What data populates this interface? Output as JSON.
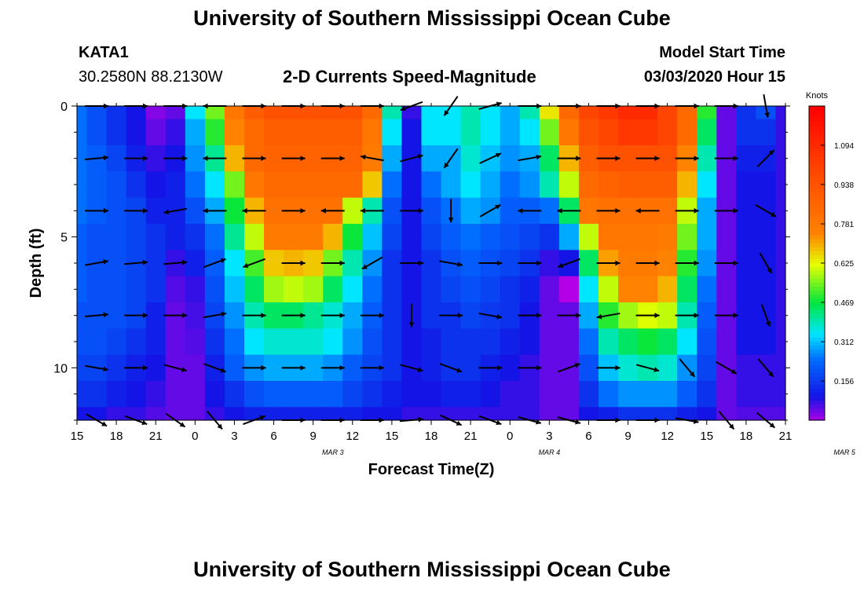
{
  "page": {
    "title_top": "University of Southern Mississippi Ocean Cube",
    "title_bottom": "University of Southern Mississippi Ocean Cube",
    "station": "KATA1",
    "location": "30.2580N 88.2130W",
    "subtitle": "2-D Currents Speed-Magnitude",
    "model_label": "Model Start Time",
    "model_time": "03/03/2020 Hour 15"
  },
  "chart_data": {
    "type": "heatmap",
    "title": "2-D Currents Speed-Magnitude",
    "xlabel": "Forecast Time(Z)",
    "ylabel": "Depth (ft)",
    "x_tick_labels": [
      "15",
      "18",
      "21",
      "0",
      "3",
      "6",
      "9",
      "12",
      "15",
      "18",
      "21",
      "0",
      "3",
      "6",
      "9",
      "12",
      "15",
      "18",
      "21"
    ],
    "date_labels": [
      {
        "text": "MAR 3",
        "hour": 19.5
      },
      {
        "text": "MAR 4",
        "hour": 36
      },
      {
        "text": "MAR 5",
        "hour": 58.5
      }
    ],
    "x_range_hours_from_start": [
      0,
      54
    ],
    "x_hours": [
      0,
      1.5,
      3,
      4.5,
      6,
      7.5,
      9,
      10.5,
      12,
      13.5,
      15,
      16.5,
      18,
      19.5,
      21,
      22.5,
      24,
      25.5,
      27,
      28.5,
      30,
      31.5,
      33,
      34.5,
      36,
      37.5,
      39,
      40.5,
      42,
      43.5,
      45,
      46.5,
      48,
      49.5,
      51,
      52.5,
      54
    ],
    "y_depth_ft": [
      0,
      1,
      2,
      3,
      4,
      5,
      6,
      7,
      8,
      9,
      10,
      11,
      12
    ],
    "y_tick_labels": [
      0,
      5,
      10
    ],
    "ylim": [
      0,
      12
    ],
    "colorbar": {
      "unit": "Knots",
      "min": 0,
      "max": 1.25,
      "labels": [
        1.094,
        0.938,
        0.781,
        0.625,
        0.469,
        0.312,
        0.156
      ]
    },
    "speed_knots": [
      [
        0.25,
        0.2,
        0.15,
        0.1,
        0.03,
        0.05,
        0.35,
        0.55,
        0.8,
        0.9,
        0.95,
        0.95,
        0.95,
        0.95,
        0.95,
        0.85,
        0.4,
        0.08,
        0.35,
        0.35,
        0.4,
        0.35,
        0.3,
        0.4,
        0.65,
        0.85,
        1.0,
        1.05,
        1.1,
        1.1,
        1.0,
        0.85,
        0.5,
        0.05,
        0.15,
        0.2,
        0.08
      ],
      [
        0.25,
        0.2,
        0.15,
        0.1,
        0.05,
        0.08,
        0.3,
        0.5,
        0.75,
        0.85,
        0.9,
        0.9,
        0.9,
        0.9,
        0.9,
        0.8,
        0.35,
        0.1,
        0.35,
        0.35,
        0.4,
        0.35,
        0.3,
        0.35,
        0.55,
        0.8,
        0.95,
        1.0,
        1.05,
        1.05,
        1.0,
        0.85,
        0.45,
        0.05,
        0.15,
        0.15,
        0.08
      ],
      [
        0.25,
        0.22,
        0.18,
        0.12,
        0.08,
        0.1,
        0.28,
        0.42,
        0.7,
        0.85,
        0.88,
        0.88,
        0.88,
        0.88,
        0.88,
        0.78,
        0.3,
        0.1,
        0.3,
        0.3,
        0.38,
        0.32,
        0.28,
        0.3,
        0.45,
        0.7,
        0.9,
        0.95,
        0.95,
        0.95,
        0.95,
        0.75,
        0.4,
        0.05,
        0.12,
        0.12,
        0.08
      ],
      [
        0.25,
        0.22,
        0.2,
        0.15,
        0.1,
        0.12,
        0.25,
        0.35,
        0.55,
        0.8,
        0.85,
        0.85,
        0.85,
        0.85,
        0.85,
        0.68,
        0.25,
        0.1,
        0.25,
        0.3,
        0.35,
        0.3,
        0.25,
        0.28,
        0.4,
        0.6,
        0.85,
        0.88,
        0.9,
        0.9,
        0.9,
        0.7,
        0.35,
        0.05,
        0.1,
        0.1,
        0.08
      ],
      [
        0.25,
        0.22,
        0.2,
        0.18,
        0.12,
        0.12,
        0.2,
        0.3,
        0.48,
        0.7,
        0.82,
        0.82,
        0.82,
        0.82,
        0.6,
        0.4,
        0.2,
        0.1,
        0.2,
        0.25,
        0.3,
        0.28,
        0.22,
        0.22,
        0.25,
        0.45,
        0.8,
        0.82,
        0.82,
        0.82,
        0.82,
        0.6,
        0.3,
        0.05,
        0.1,
        0.1,
        0.08
      ],
      [
        0.22,
        0.2,
        0.2,
        0.18,
        0.15,
        0.12,
        0.15,
        0.25,
        0.42,
        0.6,
        0.78,
        0.78,
        0.78,
        0.7,
        0.48,
        0.32,
        0.18,
        0.1,
        0.18,
        0.22,
        0.25,
        0.22,
        0.2,
        0.18,
        0.15,
        0.3,
        0.6,
        0.8,
        0.8,
        0.8,
        0.78,
        0.55,
        0.3,
        0.05,
        0.1,
        0.1,
        0.08
      ],
      [
        0.22,
        0.2,
        0.2,
        0.18,
        0.15,
        0.08,
        0.12,
        0.22,
        0.35,
        0.52,
        0.68,
        0.7,
        0.68,
        0.55,
        0.4,
        0.28,
        0.15,
        0.1,
        0.15,
        0.2,
        0.22,
        0.2,
        0.18,
        0.15,
        0.08,
        0.1,
        0.45,
        0.72,
        0.78,
        0.78,
        0.75,
        0.5,
        0.28,
        0.05,
        0.1,
        0.1,
        0.08
      ],
      [
        0.22,
        0.2,
        0.2,
        0.18,
        0.15,
        0.06,
        0.08,
        0.2,
        0.32,
        0.45,
        0.58,
        0.6,
        0.58,
        0.45,
        0.35,
        0.25,
        0.15,
        0.1,
        0.15,
        0.18,
        0.2,
        0.18,
        0.15,
        0.12,
        0.05,
        0.0,
        0.35,
        0.6,
        0.75,
        0.75,
        0.7,
        0.45,
        0.25,
        0.05,
        0.1,
        0.1,
        0.08
      ],
      [
        0.2,
        0.2,
        0.2,
        0.18,
        0.12,
        0.05,
        0.07,
        0.18,
        0.28,
        0.4,
        0.45,
        0.45,
        0.42,
        0.38,
        0.3,
        0.22,
        0.15,
        0.1,
        0.15,
        0.15,
        0.18,
        0.16,
        0.15,
        0.1,
        0.05,
        0.05,
        0.3,
        0.5,
        0.58,
        0.62,
        0.6,
        0.4,
        0.22,
        0.05,
        0.1,
        0.1,
        0.08
      ],
      [
        0.2,
        0.2,
        0.18,
        0.15,
        0.12,
        0.05,
        0.06,
        0.15,
        0.25,
        0.35,
        0.38,
        0.38,
        0.38,
        0.35,
        0.28,
        0.2,
        0.15,
        0.1,
        0.12,
        0.15,
        0.15,
        0.15,
        0.12,
        0.1,
        0.05,
        0.05,
        0.25,
        0.4,
        0.45,
        0.48,
        0.45,
        0.35,
        0.2,
        0.05,
        0.1,
        0.1,
        0.08
      ],
      [
        0.18,
        0.18,
        0.15,
        0.12,
        0.1,
        0.05,
        0.05,
        0.12,
        0.22,
        0.28,
        0.3,
        0.3,
        0.3,
        0.28,
        0.22,
        0.18,
        0.15,
        0.1,
        0.12,
        0.15,
        0.15,
        0.12,
        0.1,
        0.08,
        0.05,
        0.05,
        0.2,
        0.32,
        0.38,
        0.4,
        0.38,
        0.28,
        0.18,
        0.05,
        0.08,
        0.08,
        0.08
      ],
      [
        0.15,
        0.15,
        0.12,
        0.1,
        0.08,
        0.05,
        0.05,
        0.1,
        0.15,
        0.2,
        0.22,
        0.22,
        0.22,
        0.22,
        0.18,
        0.15,
        0.12,
        0.1,
        0.1,
        0.12,
        0.12,
        0.1,
        0.08,
        0.08,
        0.05,
        0.05,
        0.15,
        0.25,
        0.28,
        0.28,
        0.28,
        0.22,
        0.15,
        0.05,
        0.08,
        0.08,
        0.08
      ],
      [
        0.1,
        0.1,
        0.08,
        0.08,
        0.06,
        0.05,
        0.05,
        0.08,
        0.1,
        0.12,
        0.12,
        0.12,
        0.12,
        0.12,
        0.12,
        0.1,
        0.1,
        0.08,
        0.08,
        0.08,
        0.08,
        0.08,
        0.08,
        0.08,
        0.05,
        0.05,
        0.1,
        0.12,
        0.15,
        0.15,
        0.15,
        0.12,
        0.1,
        0.05,
        0.06,
        0.06,
        0.06
      ]
    ],
    "vectors": {
      "x_hours": [
        1.5,
        4.5,
        7.5,
        10.5,
        13.5,
        16.5,
        19.5,
        22.5,
        25.5,
        28.5,
        31.5,
        34.5,
        37.5,
        40.5,
        43.5,
        46.5,
        49.5,
        52.5
      ],
      "depths_ft": [
        0,
        2,
        4,
        6,
        8,
        10,
        12
      ],
      "angle_deg": [
        [
          0,
          0,
          0,
          180,
          0,
          0,
          0,
          0,
          200,
          235,
          15,
          0,
          0,
          0,
          0,
          0,
          0,
          280
        ],
        [
          5,
          0,
          0,
          180,
          0,
          0,
          0,
          170,
          15,
          235,
          25,
          10,
          0,
          0,
          0,
          0,
          0,
          45
        ],
        [
          0,
          0,
          190,
          180,
          180,
          0,
          180,
          180,
          0,
          270,
          30,
          180,
          180,
          0,
          180,
          0,
          0,
          330
        ],
        [
          10,
          5,
          5,
          20,
          200,
          0,
          0,
          210,
          0,
          350,
          0,
          0,
          200,
          0,
          0,
          0,
          0,
          300
        ],
        [
          5,
          0,
          0,
          10,
          0,
          0,
          0,
          0,
          270,
          0,
          350,
          0,
          0,
          190,
          0,
          0,
          0,
          290
        ],
        [
          350,
          0,
          345,
          340,
          0,
          0,
          0,
          0,
          345,
          340,
          0,
          0,
          20,
          0,
          345,
          310,
          330,
          310
        ],
        [
          330,
          340,
          325,
          310,
          20,
          0,
          0,
          0,
          5,
          335,
          340,
          345,
          345,
          0,
          0,
          350,
          310,
          320
        ]
      ],
      "speed_knots": [
        [
          0.25,
          0.15,
          0.55,
          0.9,
          0.95,
          0.95,
          0.9,
          0.4,
          0.4,
          0.3,
          0.7,
          1.0,
          1.0,
          0.9,
          0.9,
          0.15,
          0.2,
          0.3
        ],
        [
          0.25,
          0.15,
          0.5,
          0.85,
          0.9,
          0.9,
          0.85,
          0.35,
          0.35,
          0.28,
          0.55,
          0.9,
          1.0,
          1.0,
          0.85,
          0.12,
          0.15,
          0.3
        ],
        [
          0.25,
          0.2,
          0.3,
          0.6,
          0.82,
          0.82,
          0.6,
          0.2,
          0.25,
          0.22,
          0.4,
          0.5,
          0.82,
          0.82,
          0.82,
          0.1,
          0.1,
          0.3
        ],
        [
          0.22,
          0.2,
          0.12,
          0.35,
          0.68,
          0.68,
          0.52,
          0.15,
          0.2,
          0.18,
          0.15,
          0.1,
          0.7,
          0.78,
          0.75,
          0.1,
          0.1,
          0.3
        ],
        [
          0.2,
          0.2,
          0.05,
          0.32,
          0.45,
          0.42,
          0.38,
          0.15,
          0.15,
          0.15,
          0.1,
          0.05,
          0.55,
          0.6,
          0.58,
          0.1,
          0.1,
          0.3
        ],
        [
          0.18,
          0.15,
          0.05,
          0.22,
          0.3,
          0.3,
          0.28,
          0.15,
          0.15,
          0.12,
          0.08,
          0.05,
          0.32,
          0.38,
          0.38,
          0.15,
          0.08,
          0.25
        ],
        [
          0.1,
          0.08,
          0.05,
          0.1,
          0.12,
          0.12,
          0.12,
          0.1,
          0.08,
          0.08,
          0.08,
          0.05,
          0.12,
          0.15,
          0.15,
          0.1,
          0.06,
          0.2
        ]
      ]
    }
  }
}
